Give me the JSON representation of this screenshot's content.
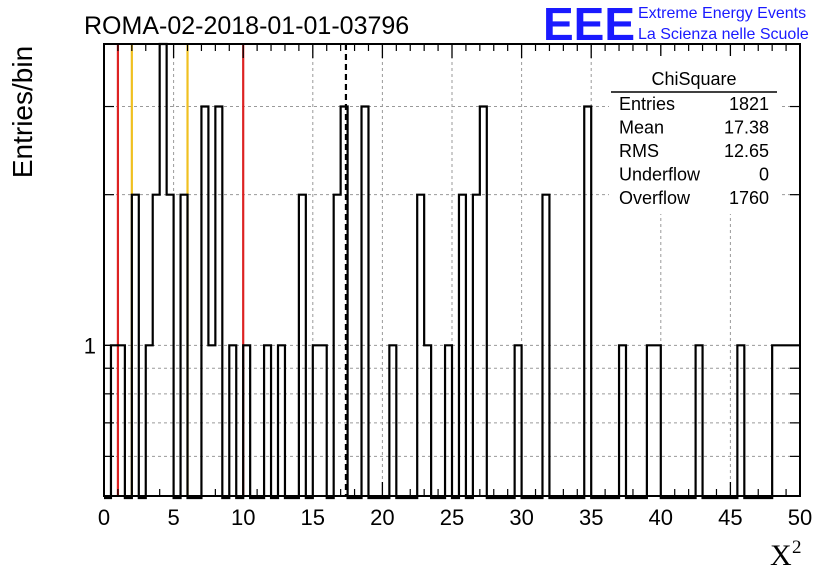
{
  "chart_data": {
    "type": "bar",
    "title": "ROMA-02-2018-01-01-03796",
    "xlabel": "X",
    "xlabel_superscript": "2",
    "ylabel": "Entries/bin",
    "x_range": [
      0,
      50
    ],
    "x_ticks": [
      "0",
      "5",
      "10",
      "15",
      "20",
      "25",
      "30",
      "35",
      "40",
      "45",
      "50"
    ],
    "y_scale": "log",
    "y_range": [
      0.5,
      4.0
    ],
    "y_tick_labels": [
      {
        "value": 1,
        "label": "1"
      }
    ],
    "grid": true,
    "bin_width": 0.5,
    "bins": [
      {
        "x": 0.5,
        "y": 1
      },
      {
        "x": 1.0,
        "y": 1
      },
      {
        "x": 2.0,
        "y": 2
      },
      {
        "x": 3.0,
        "y": 1
      },
      {
        "x": 3.5,
        "y": 2
      },
      {
        "x": 4.0,
        "y": 4
      },
      {
        "x": 4.5,
        "y": 2
      },
      {
        "x": 5.5,
        "y": 2
      },
      {
        "x": 7.0,
        "y": 3
      },
      {
        "x": 7.5,
        "y": 1
      },
      {
        "x": 8.0,
        "y": 3
      },
      {
        "x": 9.0,
        "y": 1
      },
      {
        "x": 10.0,
        "y": 1
      },
      {
        "x": 11.5,
        "y": 1
      },
      {
        "x": 12.5,
        "y": 1
      },
      {
        "x": 14.0,
        "y": 2
      },
      {
        "x": 15.0,
        "y": 1
      },
      {
        "x": 15.5,
        "y": 1
      },
      {
        "x": 16.5,
        "y": 2
      },
      {
        "x": 17.0,
        "y": 3
      },
      {
        "x": 18.5,
        "y": 3
      },
      {
        "x": 20.5,
        "y": 1
      },
      {
        "x": 22.5,
        "y": 2
      },
      {
        "x": 23.0,
        "y": 1
      },
      {
        "x": 24.5,
        "y": 1
      },
      {
        "x": 25.5,
        "y": 2
      },
      {
        "x": 26.5,
        "y": 2
      },
      {
        "x": 27.0,
        "y": 3
      },
      {
        "x": 29.5,
        "y": 1
      },
      {
        "x": 31.5,
        "y": 2
      },
      {
        "x": 34.5,
        "y": 3
      },
      {
        "x": 37.0,
        "y": 1
      },
      {
        "x": 39.0,
        "y": 1
      },
      {
        "x": 39.5,
        "y": 1
      },
      {
        "x": 42.5,
        "y": 1
      },
      {
        "x": 45.5,
        "y": 1
      },
      {
        "x": 48.0,
        "y": 1
      },
      {
        "x": 48.5,
        "y": 1
      },
      {
        "x": 49.0,
        "y": 1
      },
      {
        "x": 49.5,
        "y": 1
      }
    ],
    "vertical_lines": [
      {
        "x": 1.0,
        "color": "#dd2222",
        "style": "solid"
      },
      {
        "x": 2.0,
        "color": "#f0c020",
        "style": "solid"
      },
      {
        "x": 6.0,
        "color": "#f0c020",
        "style": "solid"
      },
      {
        "x": 10.0,
        "color": "#dd2222",
        "style": "solid"
      },
      {
        "x": 17.38,
        "color": "#000000",
        "style": "dashed"
      }
    ],
    "stats_box": {
      "title": "ChiSquare",
      "rows": [
        {
          "label": "Entries",
          "value": "1821"
        },
        {
          "label": "Mean",
          "value": "17.38"
        },
        {
          "label": "RMS",
          "value": "12.65"
        },
        {
          "label": "Underflow",
          "value": "0"
        },
        {
          "label": "Overflow",
          "value": "1760"
        }
      ]
    }
  },
  "logo": {
    "mark": "EEE",
    "line1": "Extreme Energy Events",
    "line2": "La Scienza nelle Scuole",
    "color": "#1a1aff"
  }
}
